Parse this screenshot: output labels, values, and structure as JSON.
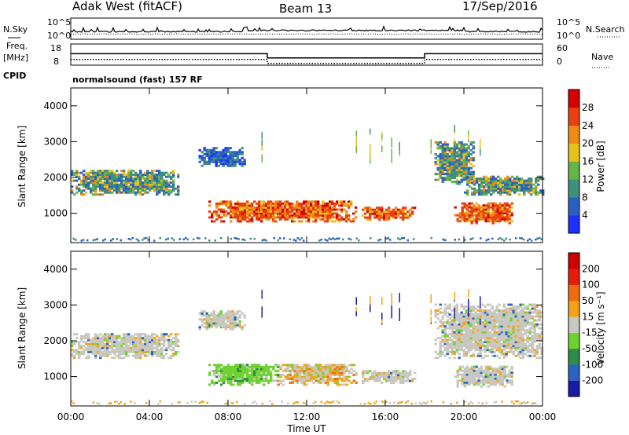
{
  "header": {
    "title_left": "Adak West (fitACF)",
    "title_center": "Beam 13",
    "title_right": "17/Sep/2016"
  },
  "panels": {
    "nsky": {
      "label": "N.Sky",
      "ticks": [
        "10^5",
        "10^0"
      ],
      "right_label": "N.Search",
      "right_ticks": [
        "10^5",
        "10^0"
      ]
    },
    "freq": {
      "label_line1": "Freq.",
      "label_line2": "[MHz]",
      "ticks": [
        "18",
        "8"
      ],
      "right_label": "Nave",
      "right_ticks": [
        "60",
        "0"
      ]
    },
    "cpid": {
      "label": "CPID",
      "value": "normalsound (fast) 157 RF"
    }
  },
  "chart_data": [
    {
      "type": "line",
      "title": "N.Sky / N.Search",
      "x": [
        "00:00",
        "04:00",
        "08:00",
        "12:00",
        "16:00",
        "20:00",
        "00:00"
      ],
      "description_values": {
        "nsky_level": "near 10^0 all day",
        "nsearch_level": "near 10^0 all day"
      }
    },
    {
      "type": "line",
      "title": "Freq / Nave",
      "x_hours": [
        0,
        10,
        10,
        18,
        18,
        24
      ],
      "freq_mhz": [
        13,
        13,
        10.4,
        10.4,
        13,
        13
      ],
      "nave": [
        16,
        16,
        5,
        5,
        16,
        16
      ]
    },
    {
      "type": "heatmap",
      "title": "Power",
      "ylabel": "Slant Range [km]",
      "y_ticks": [
        "1000",
        "2000",
        "3000",
        "4000"
      ],
      "ylim": [
        180,
        4500
      ],
      "xlim_hours": [
        0,
        24
      ],
      "colorbar": {
        "label": "Power [dB]",
        "ticks": [
          "4",
          "8",
          "12",
          "16",
          "20",
          "24",
          "28"
        ],
        "colors": [
          "#1e30ff",
          "#2b5fc4",
          "#3f8f7a",
          "#66b34a",
          "#e6c21d",
          "#f08a15",
          "#e84010",
          "#d50000"
        ]
      },
      "regions": [
        {
          "t0": 0,
          "t1": 5.5,
          "r0": 1500,
          "r1": 2200,
          "level": "med"
        },
        {
          "t0": 6.5,
          "t1": 8.8,
          "r0": 2300,
          "r1": 2800,
          "level": "low"
        },
        {
          "t0": 7.0,
          "t1": 14.5,
          "r0": 750,
          "r1": 1350,
          "level": "high"
        },
        {
          "t0": 14.8,
          "t1": 17.5,
          "r0": 800,
          "r1": 1150,
          "level": "high"
        },
        {
          "t0": 18.5,
          "t1": 20.5,
          "r0": 1800,
          "r1": 3000,
          "level": "med"
        },
        {
          "t0": 20.0,
          "t1": 24.0,
          "r0": 1500,
          "r1": 2000,
          "level": "med"
        },
        {
          "t0": 19.5,
          "t1": 22.5,
          "r0": 700,
          "r1": 1300,
          "level": "high"
        }
      ]
    },
    {
      "type": "heatmap",
      "title": "Velocity",
      "ylabel": "Slant Range [km]",
      "y_ticks": [
        "1000",
        "2000",
        "3000",
        "4000"
      ],
      "ylim": [
        180,
        4500
      ],
      "xlim_hours": [
        0,
        24
      ],
      "colorbar": {
        "label": "Velocity [m s⁻¹]",
        "ticks": [
          "200",
          "100",
          "50",
          "15",
          "-15",
          "-50",
          "-100",
          "-200"
        ],
        "colors": [
          "#1a1aa8",
          "#2e62c0",
          "#2d8c4a",
          "#6fd22e",
          "#c8c8c0",
          "#f5a316",
          "#f06c10",
          "#e81a0a",
          "#d10000"
        ]
      },
      "regions": [
        {
          "t0": 0,
          "t1": 5.5,
          "r0": 1500,
          "r1": 2200,
          "level": "grey"
        },
        {
          "t0": 6.5,
          "t1": 8.8,
          "r0": 2300,
          "r1": 2800,
          "level": "grey"
        },
        {
          "t0": 7.0,
          "t1": 10.5,
          "r0": 750,
          "r1": 1350,
          "level": "green"
        },
        {
          "t0": 10.5,
          "t1": 14.5,
          "r0": 750,
          "r1": 1350,
          "level": "mixed"
        },
        {
          "t0": 14.8,
          "t1": 17.5,
          "r0": 800,
          "r1": 1150,
          "level": "grey"
        },
        {
          "t0": 18.5,
          "t1": 24.0,
          "r0": 1500,
          "r1": 3000,
          "level": "grey"
        },
        {
          "t0": 19.5,
          "t1": 22.5,
          "r0": 700,
          "r1": 1300,
          "level": "grey"
        }
      ]
    }
  ],
  "xaxis": {
    "tick_labels": [
      "00:00",
      "04:00",
      "08:00",
      "12:00",
      "16:00",
      "20:00",
      "00:00"
    ],
    "label": "Time UT"
  }
}
